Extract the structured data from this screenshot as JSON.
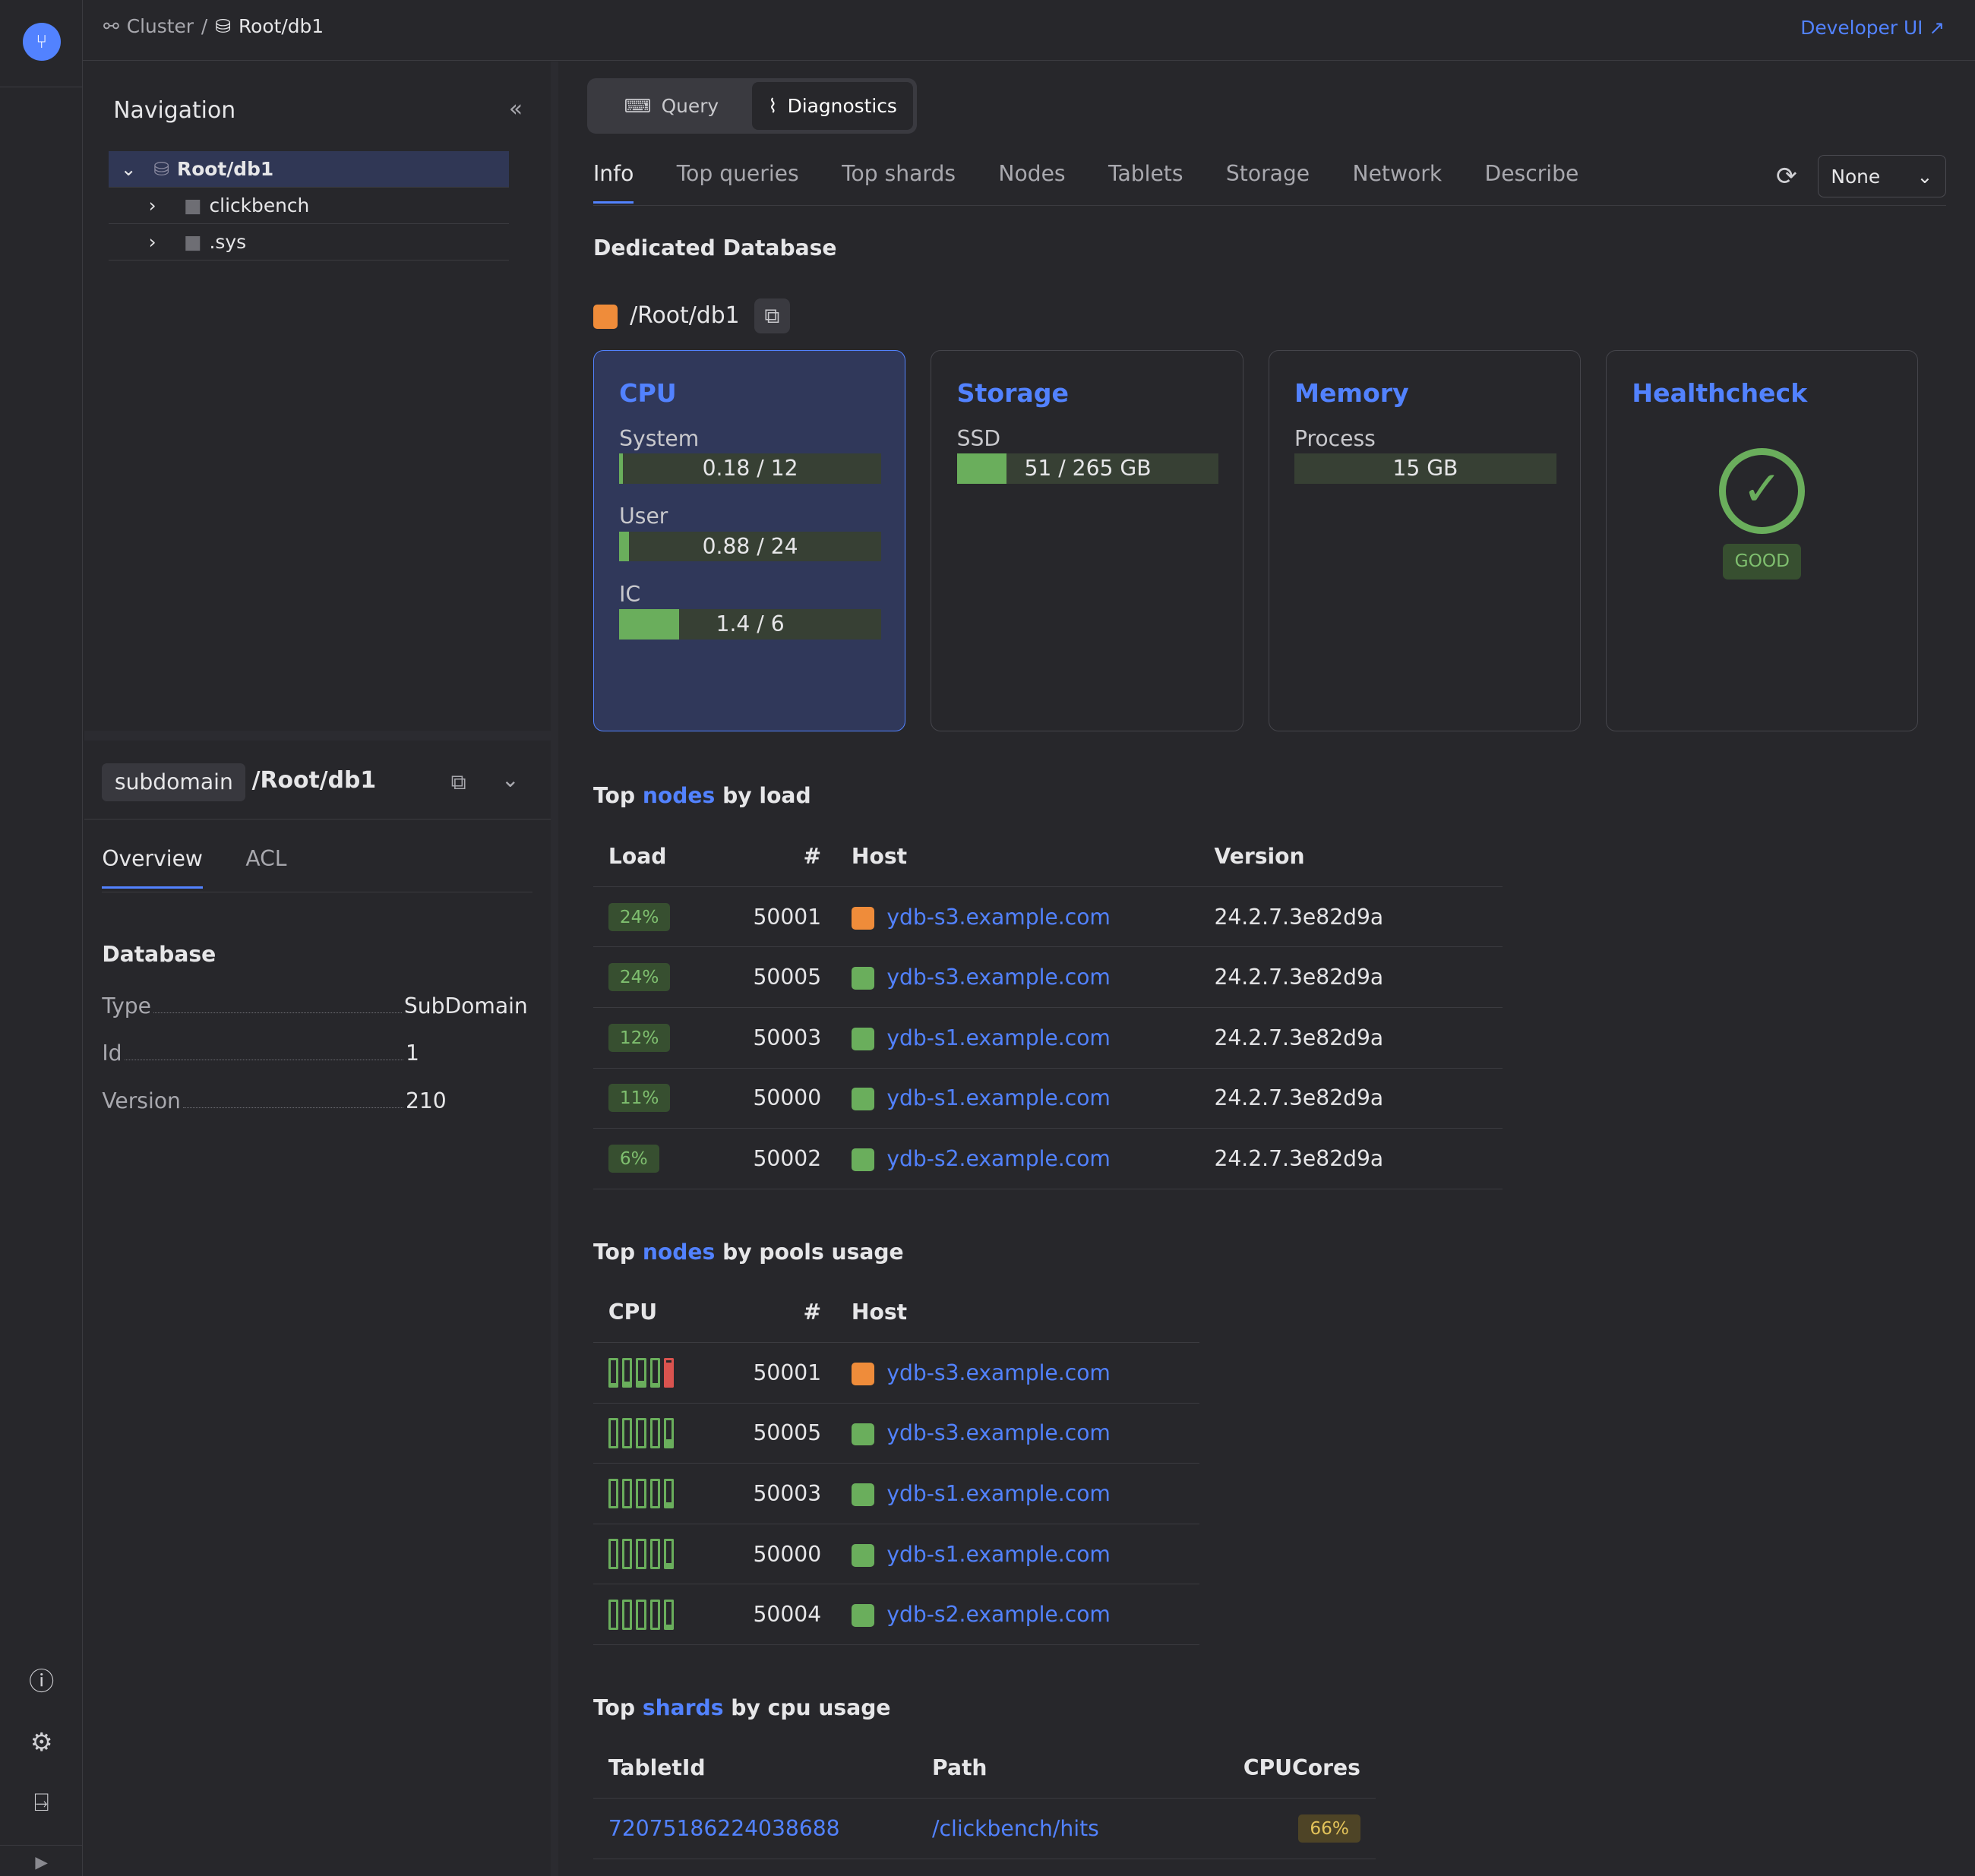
{
  "header": {
    "breadcrumbs": [
      "Cluster",
      "Root/db1"
    ],
    "separator": "/",
    "developer_ui": "Developer UI"
  },
  "navigation": {
    "title": "Navigation",
    "tree": [
      {
        "label": "Root/db1",
        "icon": "database-icon",
        "expanded": true,
        "selected": true
      },
      {
        "label": "clickbench",
        "icon": "folder-icon"
      },
      {
        "label": ".sys",
        "icon": "folder-icon"
      }
    ]
  },
  "info_panel": {
    "type_badge": "subdomain",
    "path": "/Root/db1",
    "tabs": [
      "Overview",
      "ACL"
    ],
    "active_tab": "Overview",
    "section": "Database",
    "fields": [
      {
        "key": "Type",
        "value": "SubDomain"
      },
      {
        "key": "Id",
        "value": "1"
      },
      {
        "key": "Version",
        "value": "210"
      }
    ]
  },
  "mode": {
    "buttons": [
      "Query",
      "Diagnostics"
    ],
    "active": "Diagnostics"
  },
  "tabs": {
    "items": [
      "Info",
      "Top queries",
      "Top shards",
      "Nodes",
      "Tablets",
      "Storage",
      "Network",
      "Describe"
    ],
    "active": "Info"
  },
  "select": {
    "value": "None"
  },
  "db": {
    "heading": "Dedicated Database",
    "path": "/Root/db1",
    "color": "#ef8c3a"
  },
  "cards": {
    "cpu": {
      "title": "CPU",
      "metrics": [
        {
          "label": "System",
          "text": "0.18 / 12",
          "fill": 0.015
        },
        {
          "label": "User",
          "text": "0.88 / 24",
          "fill": 0.037
        },
        {
          "label": "IC",
          "text": "1.4 / 6",
          "fill": 0.23
        }
      ]
    },
    "storage": {
      "title": "Storage",
      "metrics": [
        {
          "label": "SSD",
          "text": "51 / 265 GB",
          "fill": 0.19
        }
      ]
    },
    "memory": {
      "title": "Memory",
      "metrics": [
        {
          "label": "Process",
          "text": "15 GB",
          "fill": 0
        }
      ]
    },
    "health": {
      "title": "Healthcheck",
      "status": "GOOD"
    }
  },
  "top_load": {
    "title_pre": "Top",
    "title_link": "nodes",
    "title_post": "by load",
    "columns": [
      "Load",
      "#",
      "Host",
      "Version"
    ],
    "rows": [
      [
        "24%",
        "50001",
        "ydb-s3.example.com",
        "24.2.7.3e82d9a",
        "#ef8c3a"
      ],
      [
        "24%",
        "50005",
        "ydb-s3.example.com",
        "24.2.7.3e82d9a",
        "#6aae5c"
      ],
      [
        "12%",
        "50003",
        "ydb-s1.example.com",
        "24.2.7.3e82d9a",
        "#6aae5c"
      ],
      [
        "11%",
        "50000",
        "ydb-s1.example.com",
        "24.2.7.3e82d9a",
        "#6aae5c"
      ],
      [
        "6%",
        "50002",
        "ydb-s2.example.com",
        "24.2.7.3e82d9a",
        "#6aae5c"
      ]
    ]
  },
  "top_pools": {
    "title_pre": "Top",
    "title_link": "nodes",
    "title_post": "by pools usage",
    "columns": [
      "CPU",
      "#",
      "Host"
    ],
    "rows": [
      {
        "pools": [
          0.1,
          0.15,
          0.2,
          0.1,
          0.9
        ],
        "id": "50001",
        "host": "ydb-s3.example.com",
        "color": "#ef8c3a"
      },
      {
        "pools": [
          0,
          0,
          0,
          0,
          0.25
        ],
        "id": "50005",
        "host": "ydb-s3.example.com",
        "color": "#6aae5c"
      },
      {
        "pools": [
          0,
          0,
          0,
          0,
          0.15
        ],
        "id": "50003",
        "host": "ydb-s1.example.com",
        "color": "#6aae5c"
      },
      {
        "pools": [
          0,
          0,
          0,
          0,
          0.15
        ],
        "id": "50000",
        "host": "ydb-s1.example.com",
        "color": "#6aae5c"
      },
      {
        "pools": [
          0,
          0,
          0,
          0,
          0.1
        ],
        "id": "50004",
        "host": "ydb-s2.example.com",
        "color": "#6aae5c"
      }
    ]
  },
  "top_shards": {
    "title_pre": "Top",
    "title_link": "shards",
    "title_post": "by cpu usage",
    "columns": [
      "TabletId",
      "Path",
      "CPUCores"
    ],
    "rows": [
      [
        "72075186224038688",
        "/clickbench/hits",
        "66%"
      ]
    ]
  }
}
